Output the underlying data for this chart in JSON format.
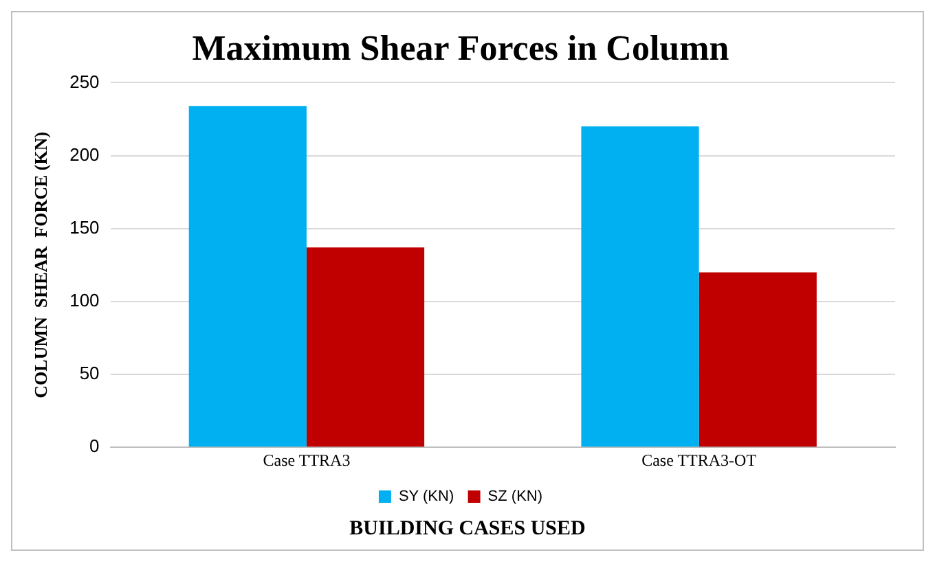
{
  "chart_data": {
    "type": "bar",
    "title": "Maximum Shear Forces in Column",
    "xlabel": "BUILDING CASES USED",
    "ylabel": "COLUMN  SHEAR  FORCE (KN)",
    "categories": [
      "Case TTRA3",
      "Case TTRA3-OT"
    ],
    "series": [
      {
        "name": "SY (KN)",
        "color": "#00b0f0",
        "values": [
          234,
          220
        ]
      },
      {
        "name": "SZ (KN)",
        "color": "#c00000",
        "values": [
          137,
          120
        ]
      }
    ],
    "ylim": [
      0,
      250
    ],
    "yticks": [
      0,
      50,
      100,
      150,
      200,
      250
    ],
    "grid": "y",
    "legend": "bottom"
  }
}
